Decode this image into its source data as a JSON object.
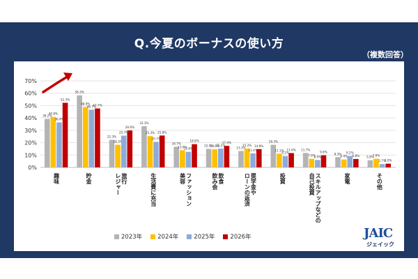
{
  "header": {
    "title": "Q.今夏のボーナスの使い方",
    "subtitle": "（複数回答）"
  },
  "logo": {
    "mark": "JAIC",
    "text": "ジェイック"
  },
  "chart_data": {
    "type": "bar",
    "categories": [
      "趣味",
      "貯金",
      "旅行、レジャー",
      "生活費に充当",
      "ファッション、美容",
      "飲食、飲み会",
      "奨学金やローンの返済",
      "投資",
      "スキルアップなどの自己投資",
      "家電",
      "その他"
    ],
    "category_lines": [
      [
        "趣味"
      ],
      [
        "貯金"
      ],
      [
        "旅行",
        "レジャー"
      ],
      [
        "生活費に充当"
      ],
      [
        "ファッション",
        "美容"
      ],
      [
        "飲食",
        "飲み会"
      ],
      [
        "奨学金や",
        "ローンの返済"
      ],
      [
        "投資"
      ],
      [
        "スキルアップなどの",
        "自己投資"
      ],
      [
        "家電"
      ],
      [
        "その他"
      ]
    ],
    "series": [
      {
        "name": "2023年",
        "color": "#b4b4b4",
        "values": [
          39.2,
          58.3,
          22.3,
          33.3,
          16.7,
          15.0,
          13.3,
          18.3,
          11.7,
          8.3,
          5.8
        ]
      },
      {
        "name": "2024年",
        "color": "#ffc000",
        "values": [
          40.8,
          48.9,
          18.3,
          25.3,
          13.9,
          14.6,
          15.2,
          11.1,
          7.0,
          6.4,
          7.0
        ]
      },
      {
        "name": "2025年",
        "color": "#8eaadb",
        "values": [
          36.4,
          46.7,
          25.7,
          20.7,
          12.6,
          15.2,
          11.4,
          9.2,
          6.0,
          9.2,
          2.7
        ]
      },
      {
        "name": "2026年",
        "color": "#c00000",
        "values": [
          52.3,
          47.7,
          29.9,
          25.8,
          18.8,
          17.4,
          14.8,
          11.6,
          9.8,
          6.8,
          3.0
        ]
      }
    ],
    "labels": [
      [
        "39.2%",
        "40.8%",
        "36.4%",
        "52.3%"
      ],
      [
        "58.3%",
        "48.9%",
        "46.7%",
        "47.7%"
      ],
      [
        "22.3%",
        "18.3%",
        "25.7%",
        "29.9%"
      ],
      [
        "33.3%",
        "25.3%",
        "20.7%",
        "25.8%"
      ],
      [
        "16.7%",
        "13.9%",
        "12.6%",
        "18.8%"
      ],
      [
        "15.0%",
        "14.6%",
        "15.2%",
        "17.4%"
      ],
      [
        "13.3%",
        "15.2%",
        "11.4%",
        "14.8%"
      ],
      [
        "18.3%",
        "11.1%",
        "9.2%",
        "11.6%"
      ],
      [
        "11.7%",
        "7.0%",
        "6.0%",
        "9.8%"
      ],
      [
        "8.3%",
        "6.4%",
        "9.2%",
        "6.8%"
      ],
      [
        "5.8%",
        "7.0%",
        "2.7%",
        "3.0%"
      ]
    ],
    "yticks": [
      "0%",
      "10%",
      "20%",
      "30%",
      "40%",
      "50%",
      "60%",
      "70%"
    ],
    "ylim": [
      0,
      70
    ],
    "grid": true,
    "legend_position": "bottom"
  }
}
